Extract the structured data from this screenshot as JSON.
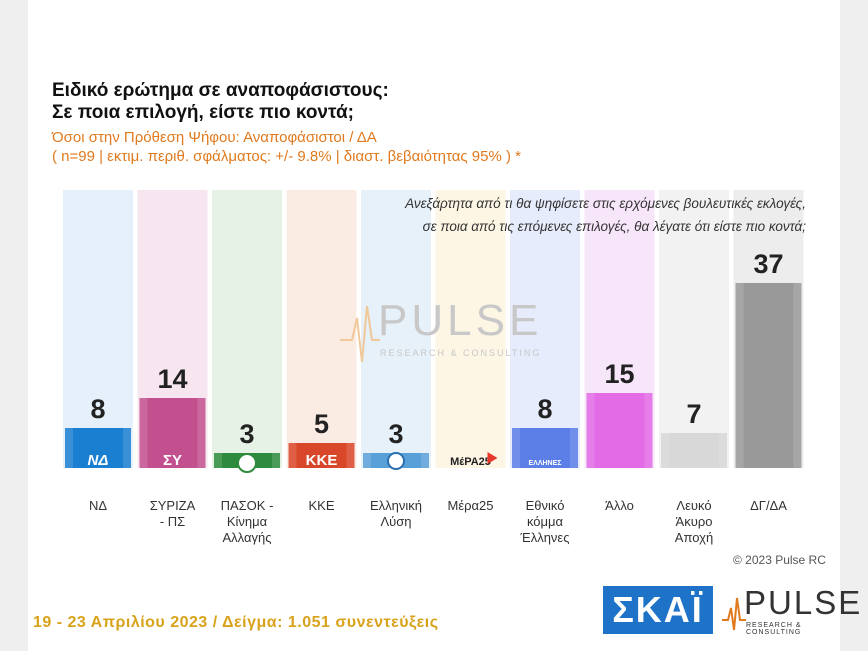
{
  "header": {
    "title_line1": "Ειδικό ερώτημα σε αναποφάσιστους:",
    "title_line2": "Σε ποια επιλογή, είστε πιο κοντά;",
    "subtitle_line1": "Όσοι στην Πρόθεση Ψήφου: Αναποφάσιστοι / ΔΑ",
    "subtitle_line2": "( n=99  |  εκτιμ. περιθ. σφάλματος: +/- 9.8%  |  διαστ. βεβαιότητας 95% ) *"
  },
  "question": {
    "line1": "Ανεξάρτητα από τι θα ψηφίσετε στις ερχόμενες βουλευτικές εκλογές,",
    "line2": "σε ποια από τις επόμενες επιλογές, θα λέγατε ότι είστε πιο κοντά;"
  },
  "chart_data": {
    "type": "bar",
    "categories": [
      [
        "ΝΔ"
      ],
      [
        "ΣΥΡΙΖΑ",
        "- ΠΣ"
      ],
      [
        "ΠΑΣΟΚ -",
        "Κίνημα",
        "Αλλαγής"
      ],
      [
        "ΚΚΕ"
      ],
      [
        "Ελληνική",
        "Λύση"
      ],
      [
        "Μέρα25"
      ],
      [
        "Εθνικό",
        "κόμμα",
        "Έλληνες"
      ],
      [
        "Άλλο"
      ],
      [
        "Λευκό",
        "Άκυρο",
        "Αποχή"
      ],
      [
        "ΔΓ/ΔΑ"
      ]
    ],
    "values": [
      8,
      14,
      3,
      5,
      3,
      null,
      8,
      15,
      7,
      37
    ],
    "value_labels": [
      "8",
      "14",
      "3",
      "5",
      "3",
      "",
      "8",
      "15",
      "7",
      "37"
    ],
    "colors": [
      "#1a7fd0",
      "#c2508f",
      "#2e8b3e",
      "#d9472a",
      "#5aa0d8",
      "#e8382c",
      "#5b7fe6",
      "#e36be6",
      "#d8d8d8",
      "#999999"
    ],
    "bg_colors": [
      "#e6f0fa",
      "#f7e6ef",
      "#e6f2e6",
      "#fbece3",
      "#e6f1fa",
      "#fdf6e4",
      "#e6ecfb",
      "#f7e6f9",
      "#f2f2f2",
      "#ededed"
    ],
    "logo_labels": [
      "ΝΔ",
      "ΣΥ",
      "",
      "ΚΚΕ",
      "",
      "ΜέΡΑ25",
      "ΕΛΛΗΝΕΣ",
      "",
      "",
      ""
    ],
    "ylim": [
      0,
      40
    ]
  },
  "watermark": {
    "brand": "PULSE",
    "tagline": "RESEARCH & CONSULTING"
  },
  "footer": {
    "copyright": "© 2023 Pulse RC",
    "fieldwork": "19 - 23  Απριλίου  2023  /  Δείγμα:  1.051 συνεντεύξεις",
    "channel_logo": "ΣΚΑΪ",
    "pulse_logo": "PULSE",
    "pulse_tagline": "RESEARCH & CONSULTING"
  }
}
